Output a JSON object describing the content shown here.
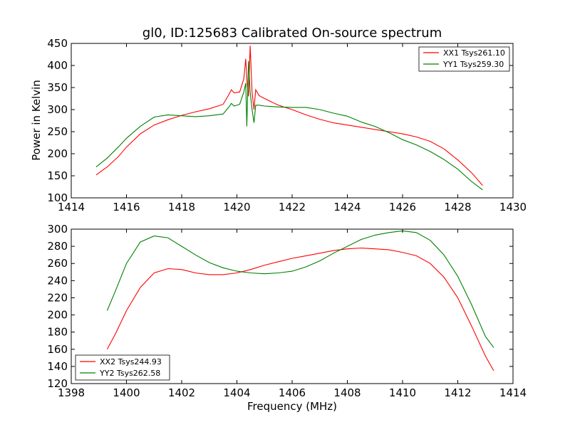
{
  "chart_data": [
    {
      "type": "line",
      "title": "gl0, ID:125683 Calibrated On-source spectrum",
      "xlabel": "",
      "ylabel": "Power in Kelvin",
      "xlim": [
        1414,
        1430
      ],
      "ylim": [
        100,
        450
      ],
      "xticks": [
        1414,
        1416,
        1418,
        1420,
        1422,
        1424,
        1426,
        1428,
        1430
      ],
      "yticks": [
        100,
        150,
        200,
        250,
        300,
        350,
        400,
        450
      ],
      "legend": "top-right",
      "series": [
        {
          "name": "XX1 Tsys261.10",
          "color": "#ff0000",
          "points": [
            [
              1414.9,
              152
            ],
            [
              1415.3,
              170
            ],
            [
              1415.7,
              193
            ],
            [
              1416,
              215
            ],
            [
              1416.5,
              245
            ],
            [
              1417,
              265
            ],
            [
              1417.5,
              277
            ],
            [
              1418,
              287
            ],
            [
              1418.5,
              295
            ],
            [
              1419,
              302
            ],
            [
              1419.5,
              312
            ],
            [
              1419.7,
              333
            ],
            [
              1419.8,
              345
            ],
            [
              1419.9,
              338
            ],
            [
              1420.1,
              340
            ],
            [
              1420.25,
              370
            ],
            [
              1420.32,
              415
            ],
            [
              1420.37,
              360
            ],
            [
              1420.42,
              330
            ],
            [
              1420.48,
              445
            ],
            [
              1420.55,
              340
            ],
            [
              1420.62,
              300
            ],
            [
              1420.68,
              345
            ],
            [
              1420.8,
              332
            ],
            [
              1421,
              325
            ],
            [
              1421.5,
              310
            ],
            [
              1422,
              300
            ],
            [
              1422.5,
              288
            ],
            [
              1423,
              278
            ],
            [
              1423.5,
              270
            ],
            [
              1424,
              265
            ],
            [
              1424.5,
              260
            ],
            [
              1425,
              255
            ],
            [
              1425.5,
              250
            ],
            [
              1426,
              245
            ],
            [
              1426.5,
              238
            ],
            [
              1427,
              228
            ],
            [
              1427.5,
              211
            ],
            [
              1428,
              186
            ],
            [
              1428.5,
              157
            ],
            [
              1428.9,
              128
            ]
          ]
        },
        {
          "name": "YY1 Tsys259.30",
          "color": "#008000",
          "points": [
            [
              1414.9,
              170
            ],
            [
              1415.3,
              190
            ],
            [
              1415.7,
              215
            ],
            [
              1416,
              235
            ],
            [
              1416.5,
              262
            ],
            [
              1417,
              283
            ],
            [
              1417.5,
              288
            ],
            [
              1418,
              286
            ],
            [
              1418.5,
              284
            ],
            [
              1419,
              286
            ],
            [
              1419.5,
              290
            ],
            [
              1419.7,
              305
            ],
            [
              1419.8,
              314
            ],
            [
              1419.9,
              308
            ],
            [
              1420.1,
              312
            ],
            [
              1420.25,
              340
            ],
            [
              1420.32,
              360
            ],
            [
              1420.36,
              262
            ],
            [
              1420.42,
              410
            ],
            [
              1420.48,
              340
            ],
            [
              1420.55,
              300
            ],
            [
              1420.62,
              270
            ],
            [
              1420.68,
              310
            ],
            [
              1420.8,
              310
            ],
            [
              1421,
              308
            ],
            [
              1421.5,
              306
            ],
            [
              1422,
              305
            ],
            [
              1422.5,
              305
            ],
            [
              1423,
              300
            ],
            [
              1423.5,
              292
            ],
            [
              1424,
              285
            ],
            [
              1424.5,
              272
            ],
            [
              1425,
              262
            ],
            [
              1425.5,
              248
            ],
            [
              1426,
              232
            ],
            [
              1426.5,
              220
            ],
            [
              1427,
              205
            ],
            [
              1427.5,
              187
            ],
            [
              1428,
              165
            ],
            [
              1428.5,
              137
            ],
            [
              1428.9,
              118
            ]
          ]
        }
      ]
    },
    {
      "type": "line",
      "title": "",
      "xlabel": "Frequency (MHz)",
      "ylabel": "",
      "xlim": [
        1398,
        1414
      ],
      "ylim": [
        120,
        300
      ],
      "xticks": [
        1398,
        1400,
        1402,
        1404,
        1406,
        1408,
        1410,
        1412,
        1414
      ],
      "yticks": [
        120,
        140,
        160,
        180,
        200,
        220,
        240,
        260,
        280,
        300
      ],
      "legend": "bottom-left",
      "series": [
        {
          "name": "XX2 Tsys244.93",
          "color": "#ff0000",
          "points": [
            [
              1399.3,
              160
            ],
            [
              1399.6,
              178
            ],
            [
              1400,
              205
            ],
            [
              1400.5,
              232
            ],
            [
              1401,
              249
            ],
            [
              1401.5,
              254
            ],
            [
              1402,
              253
            ],
            [
              1402.5,
              249
            ],
            [
              1403,
              247
            ],
            [
              1403.5,
              247
            ],
            [
              1404,
              249
            ],
            [
              1404.5,
              253
            ],
            [
              1405,
              258
            ],
            [
              1405.5,
              262
            ],
            [
              1406,
              266
            ],
            [
              1406.5,
              269
            ],
            [
              1407,
              272
            ],
            [
              1407.5,
              275
            ],
            [
              1408,
              277
            ],
            [
              1408.5,
              278
            ],
            [
              1409,
              277
            ],
            [
              1409.5,
              276
            ],
            [
              1410,
              273
            ],
            [
              1410.5,
              269
            ],
            [
              1411,
              260
            ],
            [
              1411.5,
              244
            ],
            [
              1412,
              220
            ],
            [
              1412.5,
              187
            ],
            [
              1413,
              152
            ],
            [
              1413.3,
              135
            ]
          ]
        },
        {
          "name": "YY2 Tsys262.58",
          "color": "#008000",
          "points": [
            [
              1399.3,
              205
            ],
            [
              1399.6,
              228
            ],
            [
              1400,
              260
            ],
            [
              1400.5,
              285
            ],
            [
              1401,
              292
            ],
            [
              1401.5,
              290
            ],
            [
              1402,
              280
            ],
            [
              1402.5,
              270
            ],
            [
              1403,
              261
            ],
            [
              1403.5,
              255
            ],
            [
              1404,
              251
            ],
            [
              1404.5,
              249
            ],
            [
              1405,
              248
            ],
            [
              1405.5,
              249
            ],
            [
              1406,
              251
            ],
            [
              1406.5,
              256
            ],
            [
              1407,
              263
            ],
            [
              1407.5,
              272
            ],
            [
              1408,
              280
            ],
            [
              1408.5,
              288
            ],
            [
              1409,
              293
            ],
            [
              1409.5,
              296
            ],
            [
              1410,
              298
            ],
            [
              1410.5,
              296
            ],
            [
              1411,
              287
            ],
            [
              1411.5,
              270
            ],
            [
              1412,
              245
            ],
            [
              1412.5,
              212
            ],
            [
              1413,
              175
            ],
            [
              1413.3,
              162
            ]
          ]
        }
      ]
    }
  ]
}
